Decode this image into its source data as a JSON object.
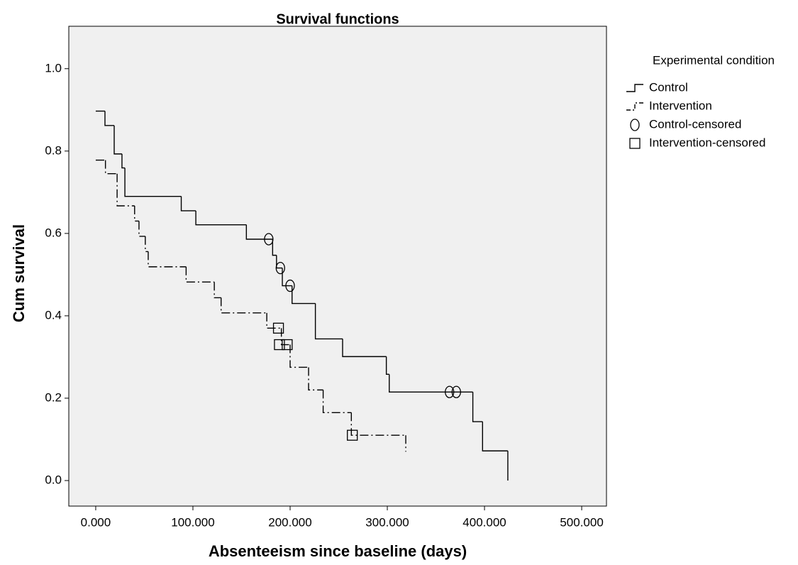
{
  "chart_data": {
    "type": "step",
    "title": "Survival functions",
    "x_label": "Absenteeism since baseline (days)",
    "y_label": "Cum survival",
    "xlim": [
      -27.7,
      525.5
    ],
    "ylim": [
      -0.062,
      1.103
    ],
    "xticks": [
      {
        "value": 0,
        "label": "0.000"
      },
      {
        "value": 100,
        "label": "100.000"
      },
      {
        "value": 200,
        "label": "200.000"
      },
      {
        "value": 300,
        "label": "300.000"
      },
      {
        "value": 400,
        "label": "400.000"
      },
      {
        "value": 500,
        "label": "500.000"
      }
    ],
    "yticks": [
      {
        "value": 0,
        "label": "0.0"
      },
      0.2,
      0.4,
      0.6,
      0.8,
      {
        "value": 1,
        "label": "1.0"
      }
    ],
    "legend_title": "Experimental condition",
    "legend_position": "right",
    "background": "#f0f0f0",
    "series": [
      {
        "name": "Control",
        "color": "#000000",
        "style": "solid",
        "kind": "step",
        "x": [
          0,
          9.5,
          19,
          27,
          30,
          88,
          103,
          155,
          182,
          186,
          192,
          202,
          226,
          254,
          299,
          302,
          388,
          398,
          424
        ],
        "values": [
          0.897,
          0.862,
          0.793,
          0.759,
          0.69,
          0.655,
          0.621,
          0.586,
          0.547,
          0.516,
          0.473,
          0.43,
          0.344,
          0.301,
          0.258,
          0.215,
          0.143,
          0.072,
          0.0
        ]
      },
      {
        "name": "Intervention",
        "color": "#000000",
        "style": "dashdot",
        "kind": "step",
        "x": [
          0,
          10,
          22,
          40,
          44.5,
          51,
          54,
          93,
          122,
          129,
          176,
          191,
          200,
          219,
          234,
          263,
          319
        ],
        "values": [
          0.778,
          0.745,
          0.667,
          0.63,
          0.593,
          0.556,
          0.519,
          0.482,
          0.444,
          0.407,
          0.37,
          0.33,
          0.275,
          0.22,
          0.165,
          0.11,
          0.07
        ]
      },
      {
        "name": "Control-censored",
        "color": "#000000",
        "kind": "censored",
        "marker": "circle",
        "x": [
          178,
          190,
          200,
          364,
          371
        ],
        "values": [
          0.586,
          0.516,
          0.473,
          0.215,
          0.215
        ]
      },
      {
        "name": "Intervention-censored",
        "color": "#000000",
        "kind": "censored",
        "marker": "square",
        "x": [
          188,
          189,
          197,
          264
        ],
        "values": [
          0.37,
          0.33,
          0.33,
          0.11
        ]
      }
    ]
  }
}
